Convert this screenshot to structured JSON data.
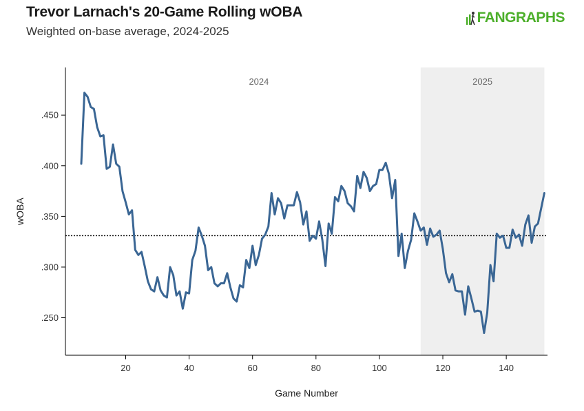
{
  "header": {
    "title": "Trevor Larnach's 20-Game Rolling wOBA",
    "subtitle": "Weighted on-base average, 2024-2025",
    "logo_text": "FANGRAPHS"
  },
  "colors": {
    "line": "#3a6694",
    "shade": "#efefef",
    "logo": "#4caf2a"
  },
  "chart_data": {
    "type": "line",
    "title": "Trevor Larnach's 20-Game Rolling wOBA",
    "subtitle": "Weighted on-base average, 2024-2025",
    "xlabel": "Game Number",
    "ylabel": "wOBA",
    "xlim": [
      1,
      153
    ],
    "ylim": [
      0.213,
      0.497
    ],
    "x_ticks": [
      20,
      40,
      60,
      80,
      100,
      120,
      140
    ],
    "x_tick_labels": [
      "20",
      "40",
      "60",
      "80",
      "100",
      "120",
      "140"
    ],
    "y_ticks": [
      0.25,
      0.3,
      0.35,
      0.4,
      0.45
    ],
    "y_tick_labels": [
      ".250",
      ".300",
      ".350",
      ".400",
      ".450"
    ],
    "reference_line": {
      "value": 0.331,
      "style": "dotted",
      "label": ""
    },
    "shaded_region": {
      "x_start": 113,
      "x_end": 152,
      "label": "2025"
    },
    "annotations": [
      {
        "text": "2024",
        "x": 62
      },
      {
        "text": "2025",
        "x": 132.5
      }
    ],
    "series": [
      {
        "name": "wOBA",
        "x": [
          6,
          7,
          8,
          9,
          10,
          11,
          12,
          13,
          14,
          15,
          16,
          17,
          18,
          19,
          20,
          21,
          22,
          23,
          24,
          25,
          26,
          27,
          28,
          29,
          30,
          31,
          32,
          33,
          34,
          35,
          36,
          37,
          38,
          39,
          40,
          41,
          42,
          43,
          44,
          45,
          46,
          47,
          48,
          49,
          50,
          51,
          52,
          53,
          54,
          55,
          56,
          57,
          58,
          59,
          60,
          61,
          62,
          63,
          64,
          65,
          66,
          67,
          68,
          69,
          70,
          71,
          72,
          73,
          74,
          75,
          76,
          77,
          78,
          79,
          80,
          81,
          82,
          83,
          84,
          85,
          86,
          87,
          88,
          89,
          90,
          91,
          92,
          93,
          94,
          95,
          96,
          97,
          98,
          99,
          100,
          101,
          102,
          103,
          104,
          105,
          106,
          107,
          108,
          109,
          110,
          111,
          112,
          113,
          114,
          115,
          116,
          117,
          118,
          119,
          120,
          121,
          122,
          123,
          124,
          125,
          126,
          127,
          128,
          129,
          130,
          131,
          132,
          133,
          134,
          135,
          136,
          137,
          138,
          139,
          140,
          141,
          142,
          143,
          144,
          145,
          146,
          147,
          148,
          149,
          150,
          151,
          152
        ],
        "values": [
          0.402,
          0.472,
          0.468,
          0.458,
          0.456,
          0.438,
          0.429,
          0.43,
          0.397,
          0.399,
          0.421,
          0.402,
          0.399,
          0.375,
          0.364,
          0.352,
          0.356,
          0.317,
          0.312,
          0.315,
          0.301,
          0.286,
          0.278,
          0.276,
          0.29,
          0.277,
          0.272,
          0.27,
          0.3,
          0.292,
          0.272,
          0.276,
          0.259,
          0.275,
          0.274,
          0.307,
          0.316,
          0.339,
          0.331,
          0.321,
          0.297,
          0.3,
          0.284,
          0.281,
          0.284,
          0.284,
          0.294,
          0.28,
          0.269,
          0.266,
          0.282,
          0.28,
          0.307,
          0.299,
          0.321,
          0.302,
          0.312,
          0.328,
          0.332,
          0.34,
          0.373,
          0.352,
          0.368,
          0.363,
          0.348,
          0.361,
          0.361,
          0.361,
          0.374,
          0.364,
          0.342,
          0.355,
          0.326,
          0.331,
          0.328,
          0.345,
          0.327,
          0.301,
          0.343,
          0.333,
          0.369,
          0.365,
          0.38,
          0.375,
          0.363,
          0.36,
          0.355,
          0.39,
          0.378,
          0.394,
          0.388,
          0.375,
          0.38,
          0.382,
          0.396,
          0.396,
          0.403,
          0.392,
          0.368,
          0.386,
          0.311,
          0.333,
          0.299,
          0.316,
          0.327,
          0.353,
          0.345,
          0.336,
          0.339,
          0.322,
          0.338,
          0.33,
          0.332,
          0.336,
          0.318,
          0.294,
          0.285,
          0.293,
          0.277,
          0.276,
          0.276,
          0.253,
          0.281,
          0.269,
          0.256,
          0.257,
          0.256,
          0.235,
          0.255,
          0.302,
          0.286,
          0.333,
          0.329,
          0.331,
          0.319,
          0.319,
          0.337,
          0.329,
          0.332,
          0.321,
          0.342,
          0.351,
          0.324,
          0.34,
          0.343,
          0.358,
          0.373
        ]
      }
    ]
  }
}
